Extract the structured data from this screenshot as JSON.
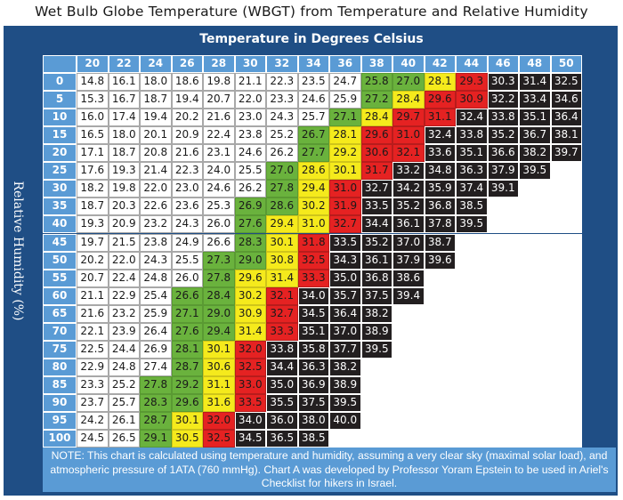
{
  "title": "Wet Bulb Globe Temperature (WBGT) from Temperature and Relative Humidity",
  "x_axis_title": "Temperature in Degrees Celsius",
  "y_axis_title": "Relative Humidity (%)",
  "note": "NOTE: This chart is calculated using temperature and humidity, assuming a very clear sky (maximal solar load), and atmospheric pressure of 1ATA (760 mmHg). Chart A was developed by Professor Yoram Epstein to be used in Ariel's Checklist for hikers in Israel.",
  "colors": {
    "frame": "#1f4e85",
    "header": "#5a9bd5",
    "white": "#ffffff",
    "green": "#6ab23d",
    "yellow": "#f5ea1c",
    "red": "#e52222",
    "black": "#231f20"
  },
  "chart_data": {
    "type": "heatmap",
    "title": "Wet Bulb Globe Temperature (WBGT) from Temperature and Relative Humidity",
    "xlabel": "Temperature in Degrees Celsius",
    "ylabel": "Relative Humidity (%)",
    "x": [
      "20",
      "22",
      "24",
      "26",
      "28",
      "30",
      "32",
      "34",
      "36",
      "38",
      "40",
      "42",
      "44",
      "46",
      "48",
      "50"
    ],
    "y": [
      "0",
      "5",
      "10",
      "15",
      "20",
      "25",
      "30",
      "35",
      "40",
      "45",
      "50",
      "55",
      "60",
      "65",
      "70",
      "75",
      "80",
      "85",
      "90",
      "95",
      "100"
    ],
    "values": [
      [
        "14.8",
        "16.1",
        "18.0",
        "18.6",
        "19.8",
        "21.1",
        "22.3",
        "23.5",
        "24.7",
        "25.8",
        "27.0",
        "28.1",
        "29.3",
        "30.3",
        "31.4",
        "32.5"
      ],
      [
        "15.3",
        "16.7",
        "18.7",
        "19.4",
        "20.7",
        "22.0",
        "23.3",
        "24.6",
        "25.9",
        "27.2",
        "28.4",
        "29.6",
        "30.9",
        "32.2",
        "33.4",
        "34.6"
      ],
      [
        "16.0",
        "17.4",
        "19.4",
        "20.2",
        "21.6",
        "23.0",
        "24.3",
        "25.7",
        "27.1",
        "28.4",
        "29.7",
        "31.1",
        "32.4",
        "33.8",
        "35.1",
        "36.4"
      ],
      [
        "16.5",
        "18.0",
        "20.1",
        "20.9",
        "22.4",
        "23.8",
        "25.2",
        "26.7",
        "28.1",
        "29.6",
        "31.0",
        "32.4",
        "33.8",
        "35.2",
        "36.7",
        "38.1"
      ],
      [
        "17.1",
        "18.7",
        "20.8",
        "21.6",
        "23.1",
        "24.6",
        "26.2",
        "27.7",
        "29.2",
        "30.6",
        "32.1",
        "33.6",
        "35.1",
        "36.6",
        "38.2",
        "39.7"
      ],
      [
        "17.6",
        "19.3",
        "21.4",
        "22.3",
        "24.0",
        "25.5",
        "27.0",
        "28.6",
        "30.1",
        "31.7",
        "33.2",
        "34.8",
        "36.3",
        "37.9",
        "39.5",
        ""
      ],
      [
        "18.2",
        "19.8",
        "22.0",
        "23.0",
        "24.6",
        "26.2",
        "27.8",
        "29.4",
        "31.0",
        "32.7",
        "34.2",
        "35.9",
        "37.4",
        "39.1",
        "",
        ""
      ],
      [
        "18.7",
        "20.3",
        "22.6",
        "23.6",
        "25.3",
        "26.9",
        "28.6",
        "30.2",
        "31.9",
        "33.5",
        "35.2",
        "36.8",
        "38.5",
        "",
        "",
        ""
      ],
      [
        "19.3",
        "20.9",
        "23.2",
        "24.3",
        "26.0",
        "27.6",
        "29.4",
        "31.0",
        "32.7",
        "34.4",
        "36.1",
        "37.8",
        "39.5",
        "",
        "",
        ""
      ],
      [
        "19.7",
        "21.5",
        "23.8",
        "24.9",
        "26.6",
        "28.3",
        "30.1",
        "31.8",
        "33.5",
        "35.2",
        "37.0",
        "38.7",
        "",
        "",
        "",
        ""
      ],
      [
        "20.2",
        "22.0",
        "24.3",
        "25.5",
        "27.3",
        "29.0",
        "30.8",
        "32.5",
        "34.3",
        "36.1",
        "37.9",
        "39.6",
        "",
        "",
        "",
        ""
      ],
      [
        "20.7",
        "22.4",
        "24.8",
        "26.0",
        "27.8",
        "29.6",
        "31.4",
        "33.3",
        "35.0",
        "36.8",
        "38.6",
        "",
        "",
        "",
        "",
        ""
      ],
      [
        "21.1",
        "22.9",
        "25.4",
        "26.6",
        "28.4",
        "30.2",
        "32.1",
        "34.0",
        "35.7",
        "37.5",
        "39.4",
        "",
        "",
        "",
        "",
        ""
      ],
      [
        "21.6",
        "23.2",
        "25.9",
        "27.1",
        "29.0",
        "30.9",
        "32.7",
        "34.5",
        "36.4",
        "38.2",
        "",
        "",
        "",
        "",
        "",
        ""
      ],
      [
        "22.1",
        "23.9",
        "26.4",
        "27.6",
        "29.4",
        "31.4",
        "33.3",
        "35.1",
        "37.0",
        "38.9",
        "",
        "",
        "",
        "",
        "",
        ""
      ],
      [
        "22.5",
        "24.4",
        "26.9",
        "28.1",
        "30.1",
        "32.0",
        "33.8",
        "35.8",
        "37.7",
        "39.5",
        "",
        "",
        "",
        "",
        "",
        ""
      ],
      [
        "22.9",
        "24.8",
        "27.4",
        "28.7",
        "30.6",
        "32.5",
        "34.4",
        "36.3",
        "38.2",
        "",
        "",
        "",
        "",
        "",
        "",
        ""
      ],
      [
        "23.3",
        "25.2",
        "27.8",
        "29.2",
        "31.1",
        "33.0",
        "35.0",
        "36.9",
        "38.9",
        "",
        "",
        "",
        "",
        "",
        "",
        ""
      ],
      [
        "23.7",
        "25.7",
        "28.3",
        "29.6",
        "31.6",
        "33.5",
        "35.5",
        "37.5",
        "39.5",
        "",
        "",
        "",
        "",
        "",
        "",
        ""
      ],
      [
        "24.2",
        "26.1",
        "28.7",
        "30.1",
        "32.0",
        "34.0",
        "36.0",
        "38.0",
        "40.0",
        "",
        "",
        "",
        "",
        "",
        "",
        ""
      ],
      [
        "24.5",
        "26.5",
        "29.1",
        "30.5",
        "32.5",
        "34.5",
        "36.5",
        "38.5",
        "",
        "",
        "",
        "",
        "",
        "",
        "",
        ""
      ]
    ],
    "color_bands": [
      {
        "color": "white",
        "max": 25.0
      },
      {
        "color": "green",
        "min": 25.0,
        "max": 27.9
      },
      {
        "color": "yellow",
        "min": 27.9,
        "max": 29.7
      },
      {
        "color": "red",
        "min": 29.5,
        "max": 31.6
      },
      {
        "color": "black",
        "min": 31.1
      }
    ]
  }
}
